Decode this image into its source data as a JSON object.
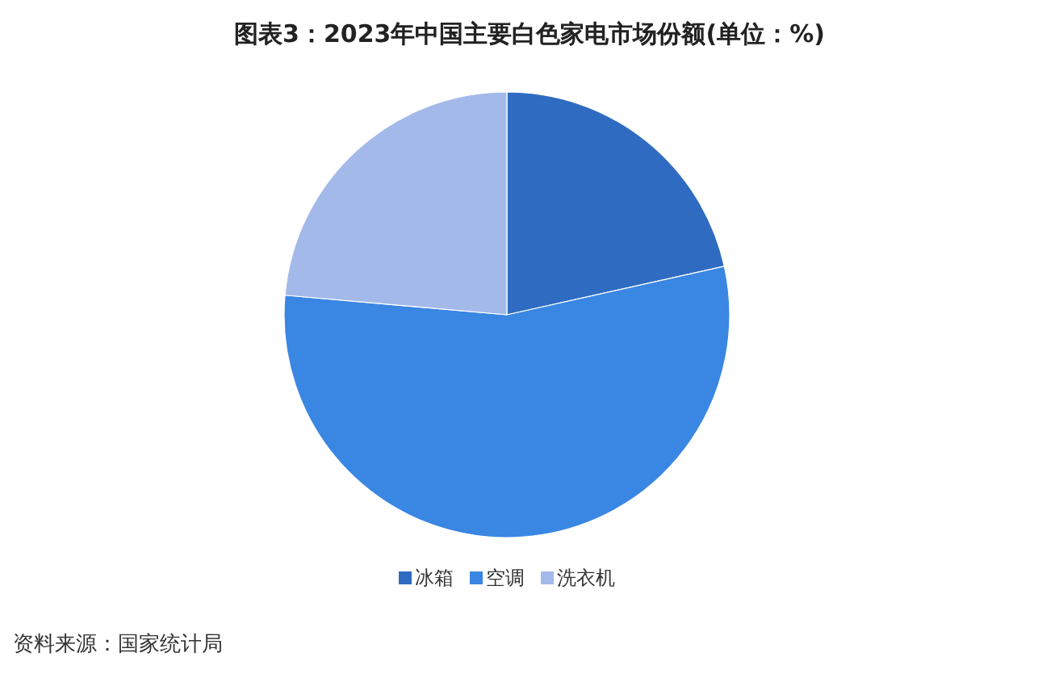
{
  "chart_data": {
    "type": "pie",
    "title": "图表3：2023年中国主要白色家电市场份额(单位：%)",
    "categories": [
      "冰箱",
      "空调",
      "洗衣机"
    ],
    "values": [
      21.5,
      54.9,
      23.6
    ],
    "colors": [
      "#2f6cc1",
      "#3a86e3",
      "#a3b9ea"
    ],
    "legend": "bottom",
    "annotations": [
      "资料来源：国家统计局"
    ]
  }
}
